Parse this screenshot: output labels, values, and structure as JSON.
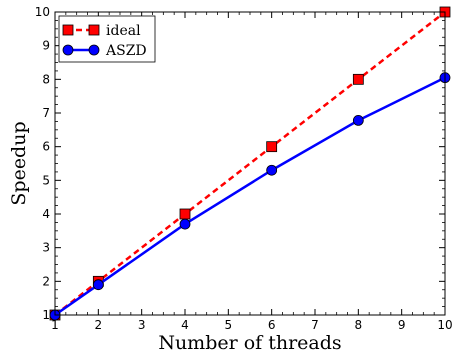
{
  "chart_data": {
    "type": "line",
    "title": "",
    "xlabel": "Number of threads",
    "ylabel": "Speedup",
    "xlim": [
      1,
      10
    ],
    "ylim": [
      1,
      10
    ],
    "xticks": [
      1,
      2,
      3,
      4,
      5,
      6,
      7,
      8,
      9,
      10
    ],
    "yticks": [
      1,
      2,
      3,
      4,
      5,
      6,
      7,
      8,
      9,
      10
    ],
    "grid": false,
    "legend_position": "top-left",
    "series": [
      {
        "name": "ideal",
        "color": "#ff0000",
        "line_style": "dashed",
        "marker": "square",
        "x": [
          1,
          2,
          4,
          6,
          8,
          10
        ],
        "y": [
          1,
          2,
          4,
          6,
          8,
          10
        ]
      },
      {
        "name": "ASZD",
        "color": "#0000ff",
        "line_style": "solid",
        "marker": "circle",
        "x": [
          1,
          2,
          4,
          6,
          8,
          10
        ],
        "y": [
          1,
          1.9,
          3.7,
          5.3,
          6.78,
          8.05
        ]
      }
    ]
  }
}
